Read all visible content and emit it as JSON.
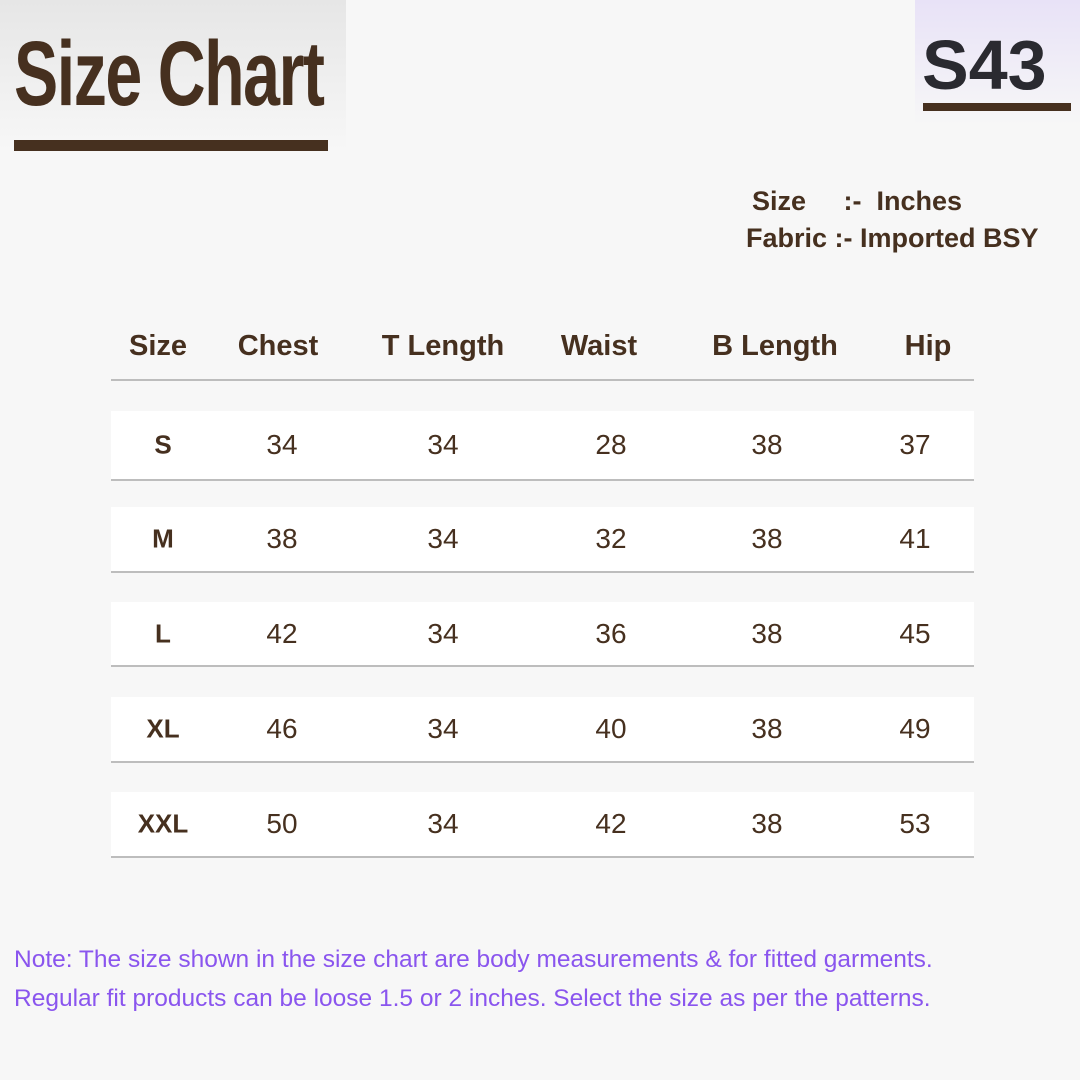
{
  "title": "Size Chart",
  "code": "S43",
  "meta": {
    "size_line": "Size     :-  Inches",
    "fabric_line": "Fabric :- Imported BSY"
  },
  "columns": [
    "Size",
    "Chest",
    "T Length",
    "Waist",
    "B Length",
    "Hip"
  ],
  "rows": [
    [
      "S",
      "34",
      "34",
      "28",
      "38",
      "37"
    ],
    [
      "M",
      "38",
      "34",
      "32",
      "38",
      "41"
    ],
    [
      "L",
      "42",
      "34",
      "36",
      "38",
      "45"
    ],
    [
      "XL",
      "46",
      "34",
      "40",
      "38",
      "49"
    ],
    [
      "XXL",
      "50",
      "34",
      "42",
      "38",
      "53"
    ]
  ],
  "note": [
    "Note: The size shown in the size chart are body measurements & for fitted garments.",
    "Regular fit products can be loose 1.5 or 2 inches. Select the size as per the patterns."
  ],
  "colors": {
    "brown": "#46301f",
    "note": "#8a55ee"
  }
}
